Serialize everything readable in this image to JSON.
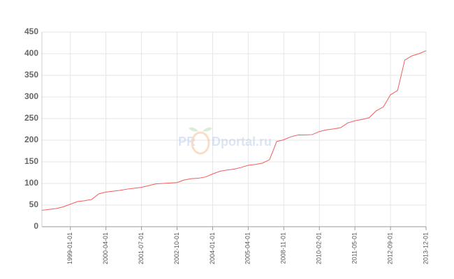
{
  "chart_data": {
    "type": "line",
    "categories": [
      null,
      null,
      null,
      null,
      "1999-01-01",
      null,
      null,
      null,
      null,
      "2000-04-01",
      null,
      null,
      null,
      null,
      "2001-07-01",
      null,
      null,
      null,
      null,
      "2002-10-01",
      null,
      null,
      null,
      null,
      "2004-01-01",
      null,
      null,
      null,
      null,
      "2005-04-01",
      null,
      null,
      null,
      null,
      "2008-11-01",
      null,
      null,
      null,
      null,
      "2010-02-01",
      null,
      null,
      null,
      null,
      "2011-05-01",
      null,
      null,
      null,
      null,
      "2012-09-01",
      null,
      null,
      null,
      null,
      "2013-12-01"
    ],
    "values": [
      38,
      40,
      42,
      46,
      52,
      58,
      60,
      63,
      76,
      80,
      82,
      84,
      87,
      89,
      91,
      95,
      99,
      100,
      101,
      102,
      108,
      111,
      112,
      115,
      122,
      128,
      131,
      133,
      137,
      142,
      144,
      147,
      155,
      197,
      201,
      208,
      212,
      212,
      213,
      220,
      224,
      226,
      229,
      240,
      245,
      248,
      252,
      268,
      277,
      305,
      315,
      385,
      395,
      400,
      407
    ],
    "color": "#f25c5c",
    "ylim": [
      0,
      450
    ],
    "yticks": [
      0,
      50,
      100,
      150,
      200,
      250,
      300,
      350,
      400,
      450
    ],
    "grid": true,
    "watermark_left": "PR",
    "watermark_right": "Dportal.ru"
  }
}
